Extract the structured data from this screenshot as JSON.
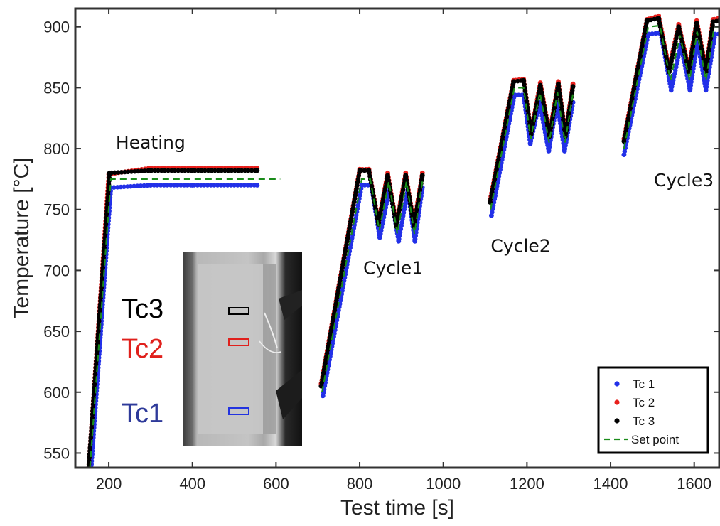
{
  "chart_data": {
    "type": "line",
    "xlabel": "Test time [s]",
    "ylabel": "Temperature [°C]",
    "xlim": [
      120,
      1660
    ],
    "ylim": [
      538,
      915
    ],
    "xticks": [
      200,
      400,
      600,
      800,
      1000,
      1200,
      1400,
      1600
    ],
    "yticks": [
      550,
      600,
      650,
      700,
      750,
      800,
      850,
      900
    ],
    "grid": false,
    "legend_position": "bottom-right",
    "annotations": [
      {
        "text": "Heating",
        "x": 300,
        "y": 800
      },
      {
        "text": "Cycle1",
        "x": 880,
        "y": 697
      },
      {
        "text": "Cycle2",
        "x": 1185,
        "y": 715
      },
      {
        "text": "Cycle3",
        "x": 1575,
        "y": 769
      }
    ],
    "inset": {
      "description_labels": [
        {
          "text": "Tc3",
          "color": "#000000"
        },
        {
          "text": "Tc2",
          "color": "#e0201c"
        },
        {
          "text": "Tc1",
          "color": "#2e3a9a"
        }
      ]
    },
    "series": [
      {
        "name": "Tc 1",
        "style": "dots",
        "color": "#2230e8",
        "segments": [
          [
            [
              158,
              538
            ],
            [
              205,
              768
            ],
            [
              300,
              770
            ],
            [
              400,
              770
            ],
            [
              555,
              770
            ]
          ],
          [
            [
              712,
              597
            ],
            [
              805,
              770
            ],
            [
              828,
              770
            ],
            [
              848,
              727
            ],
            [
              872,
              768
            ],
            [
              893,
              724
            ],
            [
              915,
              766
            ],
            [
              932,
              724
            ],
            [
              950,
              768
            ]
          ],
          [
            [
              1115,
              745
            ],
            [
              1170,
              844
            ],
            [
              1192,
              844
            ],
            [
              1208,
              804
            ],
            [
              1230,
              838
            ],
            [
              1252,
              798
            ],
            [
              1272,
              838
            ],
            [
              1290,
              798
            ],
            [
              1310,
              838
            ]
          ],
          [
            [
              1432,
              795
            ],
            [
              1490,
              894
            ],
            [
              1520,
              895
            ],
            [
              1545,
              848
            ],
            [
              1568,
              885
            ],
            [
              1590,
              848
            ],
            [
              1608,
              888
            ],
            [
              1628,
              848
            ],
            [
              1650,
              894
            ],
            [
              1660,
              894
            ]
          ]
        ]
      },
      {
        "name": "Tc 2",
        "style": "dots",
        "color": "#e8201c",
        "segments": [
          [
            [
              152,
              538
            ],
            [
              200,
              779
            ],
            [
              300,
              784
            ],
            [
              400,
              784
            ],
            [
              555,
              784
            ]
          ],
          [
            [
              708,
              607
            ],
            [
              800,
              783
            ],
            [
              822,
              783
            ],
            [
              845,
              740
            ],
            [
              867,
              780
            ],
            [
              888,
              738
            ],
            [
              910,
              780
            ],
            [
              930,
              738
            ],
            [
              950,
              780
            ]
          ],
          [
            [
              1112,
              758
            ],
            [
              1168,
              856
            ],
            [
              1192,
              857
            ],
            [
              1210,
              814
            ],
            [
              1232,
              854
            ],
            [
              1254,
              812
            ],
            [
              1275,
              855
            ],
            [
              1292,
              812
            ],
            [
              1310,
              853
            ]
          ],
          [
            [
              1432,
              808
            ],
            [
              1487,
              906
            ],
            [
              1515,
              909
            ],
            [
              1540,
              866
            ],
            [
              1563,
              902
            ],
            [
              1587,
              866
            ],
            [
              1606,
              905
            ],
            [
              1628,
              866
            ],
            [
              1645,
              906
            ],
            [
              1660,
              907
            ]
          ]
        ]
      },
      {
        "name": "Tc 3",
        "style": "dots",
        "color": "#000000",
        "segments": [
          [
            [
              152,
              538
            ],
            [
              202,
              780
            ],
            [
              300,
              782
            ],
            [
              400,
              782
            ],
            [
              555,
              782
            ]
          ],
          [
            [
              708,
              605
            ],
            [
              800,
              782
            ],
            [
              822,
              782
            ],
            [
              845,
              738
            ],
            [
              867,
              778
            ],
            [
              888,
              736
            ],
            [
              910,
              778
            ],
            [
              930,
              736
            ],
            [
              950,
              778
            ]
          ],
          [
            [
              1112,
              756
            ],
            [
              1168,
              855
            ],
            [
              1192,
              856
            ],
            [
              1210,
              812
            ],
            [
              1232,
              852
            ],
            [
              1254,
              810
            ],
            [
              1275,
              853
            ],
            [
              1292,
              810
            ],
            [
              1310,
              851
            ]
          ],
          [
            [
              1432,
              806
            ],
            [
              1487,
              905
            ],
            [
              1515,
              907
            ],
            [
              1540,
              863
            ],
            [
              1563,
              900
            ],
            [
              1587,
              863
            ],
            [
              1606,
              903
            ],
            [
              1628,
              863
            ],
            [
              1645,
              904
            ],
            [
              1660,
              905
            ]
          ]
        ]
      },
      {
        "name": "Set point",
        "style": "dashed",
        "color": "#1a8c1a",
        "segments": [
          [
            [
              155,
              538
            ],
            [
              205,
              775
            ],
            [
              610,
              775
            ]
          ],
          [
            [
              710,
              600
            ],
            [
              805,
              775
            ],
            [
              825,
              775
            ],
            [
              847,
              733
            ],
            [
              870,
              773
            ],
            [
              890,
              730
            ],
            [
              912,
              773
            ],
            [
              931,
              730
            ],
            [
              950,
              773
            ]
          ],
          [
            [
              1113,
              750
            ],
            [
              1170,
              850
            ],
            [
              1192,
              850
            ],
            [
              1209,
              808
            ],
            [
              1231,
              846
            ],
            [
              1253,
              805
            ],
            [
              1273,
              846
            ],
            [
              1291,
              805
            ],
            [
              1310,
              845
            ]
          ],
          [
            [
              1432,
              800
            ],
            [
              1490,
              900
            ],
            [
              1518,
              901
            ],
            [
              1543,
              856
            ],
            [
              1566,
              893
            ],
            [
              1589,
              856
            ],
            [
              1607,
              896
            ],
            [
              1628,
              856
            ],
            [
              1648,
              900
            ],
            [
              1660,
              900
            ]
          ]
        ]
      }
    ]
  }
}
